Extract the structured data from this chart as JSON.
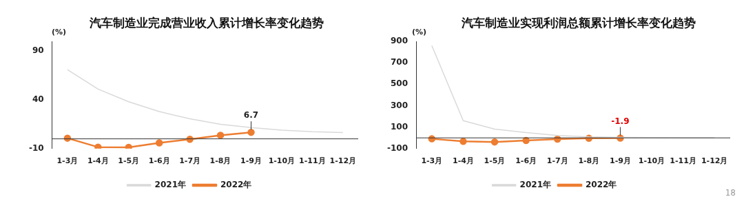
{
  "chart_data": [
    {
      "type": "line",
      "title": "汽车制造业完成营业收入累计增长率变化趋势",
      "ylabel": "(%)",
      "categories": [
        "1-3月",
        "1-4月",
        "1-5月",
        "1-6月",
        "1-7月",
        "1-8月",
        "1-9月",
        "1-10月",
        "1-11月",
        "1-12月"
      ],
      "series": [
        {
          "name": "2021年",
          "color": "#d9d9d9",
          "marker": "none",
          "values": [
            71,
            51,
            38,
            28,
            20.5,
            15,
            11.6,
            9,
            7.3,
            6.5
          ]
        },
        {
          "name": "2022年",
          "color": "#ed7d31",
          "marker": "circle",
          "values": [
            0.7,
            -8.5,
            -8.7,
            -4.2,
            -0.4,
            3.7,
            6.7,
            null,
            null,
            null
          ],
          "value_labels": [
            null,
            null,
            null,
            null,
            null,
            null,
            "6.7",
            null,
            null,
            null
          ]
        }
      ],
      "ylim": [
        -10,
        100
      ],
      "yticks": [
        -10,
        40,
        90
      ],
      "grid": false,
      "legend": "bottom"
    },
    {
      "type": "line",
      "title": "汽车制造业实现利润总额累计增长率变化趋势",
      "ylabel": "(%)",
      "categories": [
        "1-3月",
        "1-4月",
        "1-5月",
        "1-6月",
        "1-7月",
        "1-8月",
        "1-9月",
        "1-10月",
        "1-11月",
        "1-12月"
      ],
      "series": [
        {
          "name": "2021年",
          "color": "#d9d9d9",
          "marker": "none",
          "values": [
            860,
            160,
            82,
            49,
            22,
            9,
            4,
            3,
            2,
            1
          ]
        },
        {
          "name": "2022年",
          "color": "#ed7d31",
          "marker": "circle",
          "values": [
            -9,
            -33,
            -38,
            -24,
            -11,
            -4,
            -1.9,
            null,
            null,
            null
          ],
          "value_labels": [
            null,
            null,
            null,
            null,
            null,
            null,
            "-1.9",
            null,
            null,
            null
          ]
        }
      ],
      "ylim": [
        -100,
        900
      ],
      "yticks": [
        -100,
        100,
        300,
        500,
        700,
        900
      ],
      "grid": false,
      "legend": "bottom",
      "annotations": [
        "18"
      ]
    }
  ]
}
